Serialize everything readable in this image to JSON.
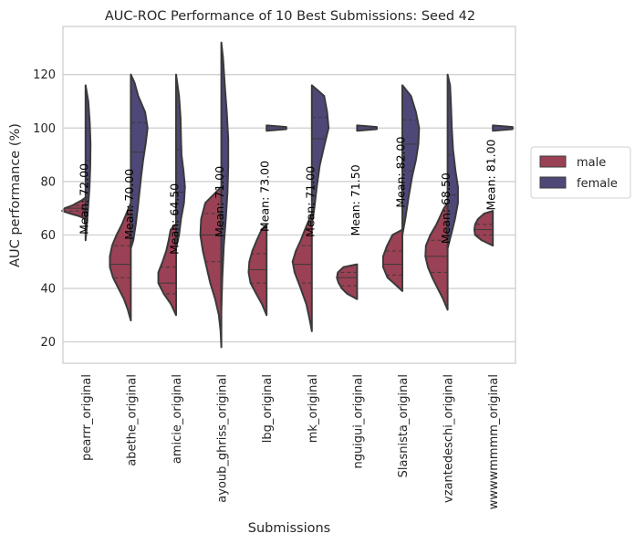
{
  "chart_data": {
    "type": "violin",
    "title": "AUC-ROC Performance of 10 Best Submissions: Seed 42",
    "xlabel": "Submissions",
    "ylabel": "AUC performance (%)",
    "ylim": [
      12,
      138
    ],
    "yticks": [
      20,
      40,
      60,
      80,
      100,
      120
    ],
    "grid": true,
    "split": true,
    "legend": {
      "placement": "right",
      "entries": [
        {
          "label": "male",
          "color": "#9b4155"
        },
        {
          "label": "female",
          "color": "#4e4878"
        }
      ]
    },
    "categories": [
      "pearrr_original",
      "abethe_original",
      "amicie_original",
      "ayoub_ghriss_original",
      "lbg_original",
      "mk_original",
      "nguigui_original",
      "Slasnista_original",
      "vzantedeschi_original",
      "wwwwmmmm_original"
    ],
    "mean_labels": [
      "Mean: 72.00",
      "Mean: 70.00",
      "Mean: 64.50",
      "Mean: 71.00",
      "Mean: 73.00",
      "Mean: 71.00",
      "Mean: 71.50",
      "Mean: 82.00",
      "Mean: 68.50",
      "Mean: 81.00"
    ],
    "means": [
      72.0,
      70.0,
      64.5,
      71.0,
      73.0,
      71.0,
      71.5,
      82.0,
      68.5,
      81.0
    ],
    "series": [
      {
        "name": "male",
        "color": "#9b4155",
        "violins": [
          {
            "profile": [
              [
                66,
                0.0
              ],
              [
                67,
                0.25
              ],
              [
                68,
                0.62
              ],
              [
                69,
                0.95
              ],
              [
                70,
                0.85
              ],
              [
                71,
                0.55
              ],
              [
                72,
                0.35
              ],
              [
                73,
                0.15
              ],
              [
                74,
                0.0
              ]
            ],
            "quartiles": [
              69,
              70,
              71
            ]
          },
          {
            "profile": [
              [
                28,
                0.0
              ],
              [
                32,
                0.12
              ],
              [
                36,
                0.28
              ],
              [
                40,
                0.5
              ],
              [
                44,
                0.72
              ],
              [
                48,
                0.85
              ],
              [
                52,
                0.85
              ],
              [
                56,
                0.76
              ],
              [
                60,
                0.58
              ],
              [
                64,
                0.36
              ],
              [
                68,
                0.18
              ],
              [
                72,
                0.0
              ]
            ],
            "quartiles": [
              44,
              49,
              56
            ]
          },
          {
            "profile": [
              [
                30,
                0.0
              ],
              [
                34,
                0.2
              ],
              [
                38,
                0.5
              ],
              [
                42,
                0.72
              ],
              [
                46,
                0.72
              ],
              [
                50,
                0.55
              ],
              [
                54,
                0.4
              ],
              [
                58,
                0.3
              ],
              [
                62,
                0.22
              ],
              [
                64,
                0.0
              ]
            ],
            "quartiles": [
              38,
              42,
              48
            ]
          },
          {
            "profile": [
              [
                18,
                0.0
              ],
              [
                24,
                0.03
              ],
              [
                30,
                0.1
              ],
              [
                36,
                0.25
              ],
              [
                42,
                0.45
              ],
              [
                48,
                0.6
              ],
              [
                54,
                0.75
              ],
              [
                60,
                0.85
              ],
              [
                66,
                0.82
              ],
              [
                72,
                0.65
              ],
              [
                78,
                0.0
              ]
            ],
            "quartiles": [
              50,
              60,
              68
            ]
          },
          {
            "profile": [
              [
                30,
                0.0
              ],
              [
                34,
                0.18
              ],
              [
                38,
                0.42
              ],
              [
                42,
                0.65
              ],
              [
                46,
                0.73
              ],
              [
                50,
                0.7
              ],
              [
                54,
                0.58
              ],
              [
                58,
                0.4
              ],
              [
                62,
                0.2
              ],
              [
                64,
                0.0
              ]
            ],
            "quartiles": [
              42,
              47,
              53
            ]
          },
          {
            "profile": [
              [
                24,
                0.0
              ],
              [
                28,
                0.08
              ],
              [
                34,
                0.22
              ],
              [
                40,
                0.45
              ],
              [
                46,
                0.7
              ],
              [
                50,
                0.78
              ],
              [
                54,
                0.65
              ],
              [
                58,
                0.45
              ],
              [
                62,
                0.28
              ],
              [
                66,
                0.1
              ],
              [
                68,
                0.0
              ]
            ],
            "quartiles": [
              42,
              49,
              56
            ]
          },
          {
            "profile": [
              [
                36,
                0.0
              ],
              [
                38,
                0.4
              ],
              [
                40,
                0.62
              ],
              [
                42,
                0.75
              ],
              [
                44,
                0.82
              ],
              [
                46,
                0.78
              ],
              [
                48,
                0.55
              ],
              [
                49,
                0.0
              ]
            ],
            "quartiles": [
              41,
              44,
              46
            ]
          },
          {
            "profile": [
              [
                39,
                0.0
              ],
              [
                42,
                0.35
              ],
              [
                44,
                0.6
              ],
              [
                48,
                0.78
              ],
              [
                52,
                0.78
              ],
              [
                56,
                0.62
              ],
              [
                60,
                0.4
              ],
              [
                62,
                0.0
              ]
            ],
            "quartiles": [
              45,
              49,
              54
            ]
          },
          {
            "profile": [
              [
                32,
                0.0
              ],
              [
                36,
                0.18
              ],
              [
                40,
                0.4
              ],
              [
                44,
                0.62
              ],
              [
                48,
                0.8
              ],
              [
                52,
                0.9
              ],
              [
                56,
                0.88
              ],
              [
                60,
                0.7
              ],
              [
                64,
                0.45
              ],
              [
                70,
                0.15
              ],
              [
                72,
                0.0
              ]
            ],
            "quartiles": [
              46,
              52,
              58
            ]
          },
          {
            "profile": [
              [
                56,
                0.0
              ],
              [
                58,
                0.45
              ],
              [
                60,
                0.72
              ],
              [
                62,
                0.75
              ],
              [
                64,
                0.72
              ],
              [
                66,
                0.6
              ],
              [
                68,
                0.35
              ],
              [
                69,
                0.0
              ]
            ],
            "quartiles": [
              60,
              62,
              64
            ]
          }
        ]
      },
      {
        "name": "female",
        "color": "#4e4878",
        "violins": [
          {
            "profile": [
              [
                58,
                0.0
              ],
              [
                62,
                0.04
              ],
              [
                70,
                0.1
              ],
              [
                78,
                0.16
              ],
              [
                86,
                0.19
              ],
              [
                94,
                0.2
              ],
              [
                102,
                0.17
              ],
              [
                110,
                0.11
              ],
              [
                116,
                0.0
              ]
            ],
            "quartiles": [
              74,
              88,
              100
            ]
          },
          {
            "profile": [
              [
                55,
                0.0
              ],
              [
                58,
                0.1
              ],
              [
                64,
                0.2
              ],
              [
                70,
                0.28
              ],
              [
                76,
                0.35
              ],
              [
                82,
                0.42
              ],
              [
                88,
                0.5
              ],
              [
                94,
                0.6
              ],
              [
                100,
                0.68
              ],
              [
                106,
                0.58
              ],
              [
                112,
                0.3
              ],
              [
                117,
                0.15
              ],
              [
                120,
                0.0
              ]
            ],
            "quartiles": [
              75,
              91,
              102
            ]
          },
          {
            "profile": [
              [
                55,
                0.0
              ],
              [
                60,
                0.12
              ],
              [
                66,
                0.2
              ],
              [
                72,
                0.32
              ],
              [
                78,
                0.36
              ],
              [
                84,
                0.3
              ],
              [
                90,
                0.22
              ],
              [
                96,
                0.2
              ],
              [
                104,
                0.18
              ],
              [
                112,
                0.12
              ],
              [
                120,
                0.0
              ]
            ],
            "quartiles": [
              68,
              76,
              92
            ]
          },
          {
            "profile": [
              [
                32,
                0.0
              ],
              [
                44,
                0.04
              ],
              [
                56,
                0.1
              ],
              [
                66,
                0.18
              ],
              [
                76,
                0.25
              ],
              [
                86,
                0.28
              ],
              [
                96,
                0.28
              ],
              [
                106,
                0.22
              ],
              [
                116,
                0.14
              ],
              [
                126,
                0.07
              ],
              [
                132,
                0.0
              ]
            ],
            "quartiles": [
              63,
              82,
              100
            ]
          },
          {
            "profile": [
              [
                99,
                0.0
              ],
              [
                99.6,
                0.8
              ],
              [
                100.4,
                0.8
              ],
              [
                101,
                0.0
              ]
            ],
            "quartiles": []
          },
          {
            "profile": [
              [
                64,
                0.0
              ],
              [
                70,
                0.1
              ],
              [
                78,
                0.2
              ],
              [
                86,
                0.32
              ],
              [
                94,
                0.52
              ],
              [
                100,
                0.68
              ],
              [
                106,
                0.62
              ],
              [
                112,
                0.5
              ],
              [
                116,
                0.0
              ]
            ],
            "quartiles": [
              84,
              96,
              104
            ]
          },
          {
            "profile": [
              [
                99,
                0.0
              ],
              [
                99.6,
                0.8
              ],
              [
                100.4,
                0.8
              ],
              [
                101,
                0.0
              ]
            ],
            "quartiles": []
          },
          {
            "profile": [
              [
                60,
                0.0
              ],
              [
                66,
                0.12
              ],
              [
                74,
                0.25
              ],
              [
                82,
                0.4
              ],
              [
                88,
                0.55
              ],
              [
                94,
                0.65
              ],
              [
                100,
                0.68
              ],
              [
                106,
                0.55
              ],
              [
                112,
                0.35
              ],
              [
                116,
                0.0
              ]
            ],
            "quartiles": [
              84,
              94,
              103
            ]
          },
          {
            "profile": [
              [
                55,
                0.0
              ],
              [
                60,
                0.14
              ],
              [
                66,
                0.3
              ],
              [
                72,
                0.42
              ],
              [
                78,
                0.42
              ],
              [
                84,
                0.32
              ],
              [
                92,
                0.22
              ],
              [
                100,
                0.17
              ],
              [
                108,
                0.14
              ],
              [
                116,
                0.1
              ],
              [
                120,
                0.0
              ]
            ],
            "quartiles": [
              68,
              75,
              90
            ]
          },
          {
            "profile": [
              [
                99,
                0.0
              ],
              [
                99.6,
                0.8
              ],
              [
                100.4,
                0.8
              ],
              [
                101,
                0.0
              ]
            ],
            "quartiles": []
          }
        ]
      }
    ]
  }
}
